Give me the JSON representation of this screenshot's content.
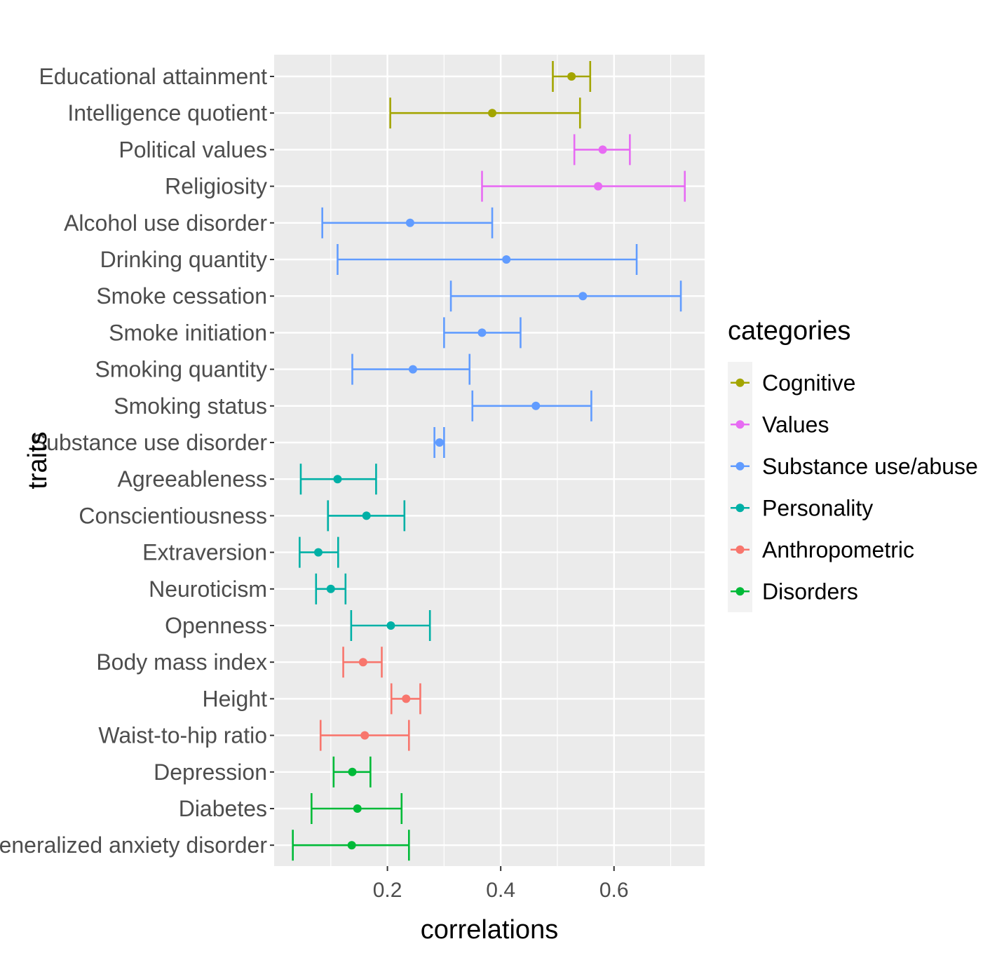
{
  "chart_data": {
    "type": "errorbar",
    "xlabel": "correlations",
    "ylabel": "traits",
    "xlim": [
      0.0,
      0.76
    ],
    "x_ticks": [
      0.2,
      0.4,
      0.6
    ],
    "x_tick_labels": [
      "0.2",
      "0.4",
      "0.6"
    ],
    "grid": true,
    "legend": {
      "title": "categories",
      "position": "right",
      "entries": [
        {
          "name": "Cognitive",
          "color": "#a3a500"
        },
        {
          "name": "Values",
          "color": "#e76bf3"
        },
        {
          "name": "Substance use/abuse",
          "color": "#619cff"
        },
        {
          "name": "Personality",
          "color": "#00b0a6"
        },
        {
          "name": "Anthropometric",
          "color": "#f8766d"
        },
        {
          "name": "Disorders",
          "color": "#00ba38"
        }
      ]
    },
    "series": [
      {
        "trait": "Educational attainment",
        "category": "Cognitive",
        "value": 0.525,
        "lower": 0.492,
        "upper": 0.558
      },
      {
        "trait": "Intelligence quotient",
        "category": "Cognitive",
        "value": 0.385,
        "lower": 0.205,
        "upper": 0.54
      },
      {
        "trait": "Political values",
        "category": "Values",
        "value": 0.58,
        "lower": 0.53,
        "upper": 0.628
      },
      {
        "trait": "Religiosity",
        "category": "Values",
        "value": 0.572,
        "lower": 0.367,
        "upper": 0.725
      },
      {
        "trait": "Alcohol use disorder",
        "category": "Substance use/abuse",
        "value": 0.24,
        "lower": 0.085,
        "upper": 0.385
      },
      {
        "trait": "Drinking quantity",
        "category": "Substance use/abuse",
        "value": 0.41,
        "lower": 0.112,
        "upper": 0.64
      },
      {
        "trait": "Smoke cessation",
        "category": "Substance use/abuse",
        "value": 0.545,
        "lower": 0.312,
        "upper": 0.718
      },
      {
        "trait": "Smoke initiation",
        "category": "Substance use/abuse",
        "value": 0.367,
        "lower": 0.3,
        "upper": 0.435
      },
      {
        "trait": "Smoking quantity",
        "category": "Substance use/abuse",
        "value": 0.245,
        "lower": 0.138,
        "upper": 0.345
      },
      {
        "trait": "Smoking status",
        "category": "Substance use/abuse",
        "value": 0.462,
        "lower": 0.35,
        "upper": 0.56
      },
      {
        "trait": "Substance use disorder",
        "category": "Substance use/abuse",
        "value": 0.292,
        "lower": 0.283,
        "upper": 0.3
      },
      {
        "trait": "Agreeableness",
        "category": "Personality",
        "value": 0.112,
        "lower": 0.047,
        "upper": 0.18
      },
      {
        "trait": "Conscientiousness",
        "category": "Personality",
        "value": 0.163,
        "lower": 0.095,
        "upper": 0.23
      },
      {
        "trait": "Extraversion",
        "category": "Personality",
        "value": 0.078,
        "lower": 0.045,
        "upper": 0.113
      },
      {
        "trait": "Neuroticism",
        "category": "Personality",
        "value": 0.1,
        "lower": 0.074,
        "upper": 0.126
      },
      {
        "trait": "Openness",
        "category": "Personality",
        "value": 0.206,
        "lower": 0.136,
        "upper": 0.275
      },
      {
        "trait": "Body mass index",
        "category": "Anthropometric",
        "value": 0.157,
        "lower": 0.122,
        "upper": 0.19
      },
      {
        "trait": "Height",
        "category": "Anthropometric",
        "value": 0.233,
        "lower": 0.207,
        "upper": 0.258
      },
      {
        "trait": "Waist-to-hip ratio",
        "category": "Anthropometric",
        "value": 0.16,
        "lower": 0.082,
        "upper": 0.238
      },
      {
        "trait": "Depression",
        "category": "Disorders",
        "value": 0.138,
        "lower": 0.105,
        "upper": 0.17
      },
      {
        "trait": "Diabetes",
        "category": "Disorders",
        "value": 0.147,
        "lower": 0.066,
        "upper": 0.225
      },
      {
        "trait": "Generalized anxiety disorder",
        "category": "Disorders",
        "value": 0.137,
        "lower": 0.033,
        "upper": 0.238
      }
    ]
  }
}
